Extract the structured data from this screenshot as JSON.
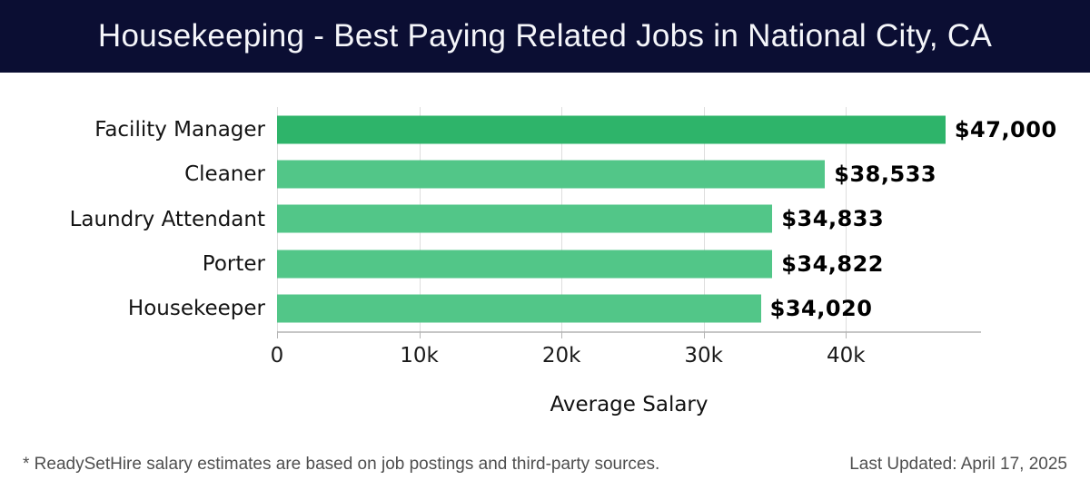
{
  "header": {
    "title": "Housekeeping - Best Paying Related Jobs in National City, CA",
    "background_color": "#0b0e33",
    "text_color": "#f5f6fa"
  },
  "chart_data": {
    "type": "bar",
    "orientation": "horizontal",
    "title": "Housekeeping - Best Paying Related Jobs in National City, CA",
    "categories": [
      "Facility Manager",
      "Cleaner",
      "Laundry Attendant",
      "Porter",
      "Housekeeper"
    ],
    "values": [
      47000,
      38533,
      34833,
      34822,
      34020
    ],
    "value_labels": [
      "$47,000",
      "$38,533",
      "$34,833",
      "$34,822",
      "$34,020"
    ],
    "xlabel": "Average Salary",
    "ylabel": "",
    "xlim": [
      0,
      49500
    ],
    "xticks": [
      0,
      10000,
      20000,
      30000,
      40000
    ],
    "xtick_labels": [
      "0",
      "10k",
      "20k",
      "30k",
      "40k"
    ],
    "grid": true,
    "legend": "none",
    "bar_colors": {
      "first": "#2eb46a",
      "rest": "#52c688"
    },
    "gridline_color": "#dedede"
  },
  "footer": {
    "note": "* ReadySetHire salary estimates are based on job postings and third-party sources.",
    "last_updated": "Last Updated: April 17, 2025"
  }
}
